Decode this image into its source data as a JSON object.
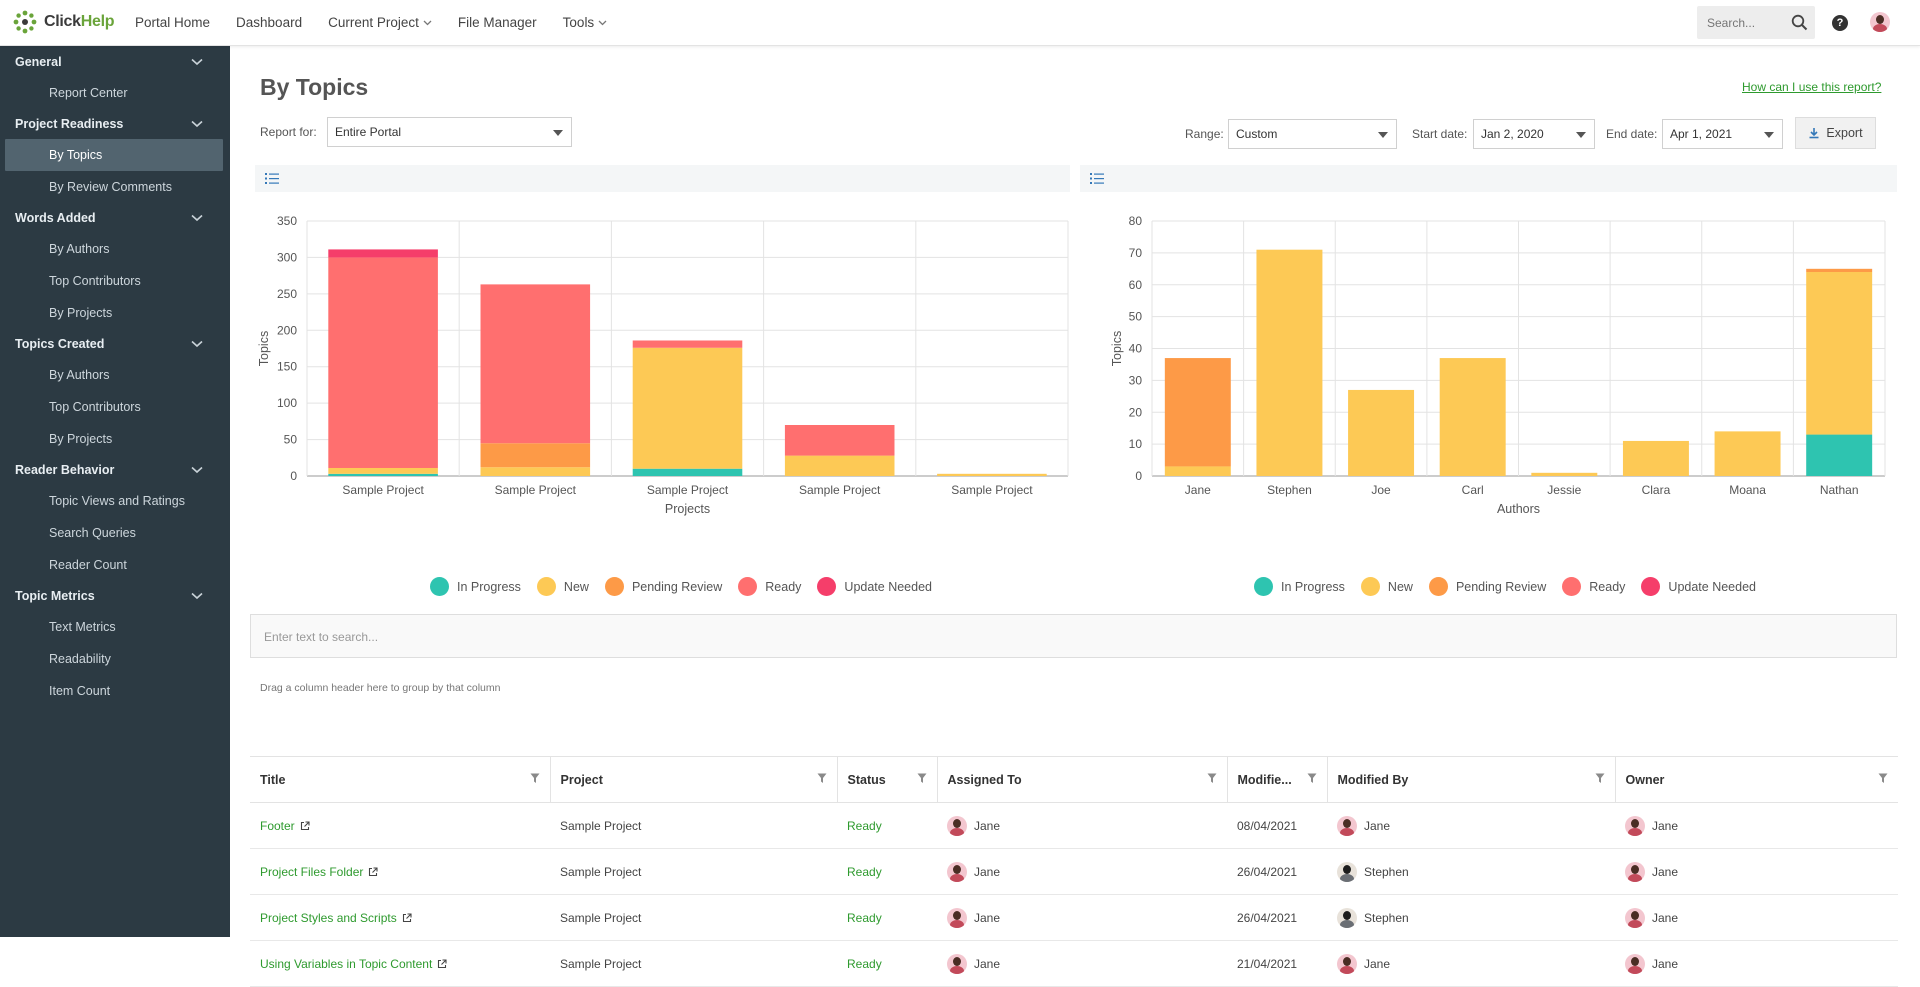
{
  "app": {
    "logo_prefix": "Click",
    "logo_suffix": "Help"
  },
  "topnav": {
    "items": [
      {
        "label": "Portal Home"
      },
      {
        "label": "Dashboard"
      },
      {
        "label": "Current Project"
      },
      {
        "label": "File Manager"
      },
      {
        "label": "Tools"
      }
    ],
    "search_placeholder": "Search...",
    "help": "?"
  },
  "sidebar": {
    "groups": [
      {
        "label": "General",
        "items": [
          "Report Center"
        ]
      },
      {
        "label": "Project Readiness",
        "items": [
          "By Topics",
          "By Review Comments"
        ]
      },
      {
        "label": "Words Added",
        "items": [
          "By Authors",
          "Top Contributors",
          "By Projects"
        ]
      },
      {
        "label": "Topics Created",
        "items": [
          "By Authors",
          "Top Contributors",
          "By Projects"
        ]
      },
      {
        "label": "Reader Behavior",
        "items": [
          "Topic Views and Ratings",
          "Search Queries",
          "Reader Count"
        ]
      },
      {
        "label": "Topic Metrics",
        "items": [
          "Text Metrics",
          "Readability",
          "Item Count"
        ]
      }
    ],
    "active": "By Topics"
  },
  "page": {
    "title": "By Topics",
    "help_link": "How can I use this report?",
    "report_for_label": "Report for:",
    "report_for_value": "Entire Portal",
    "range_label": "Range:",
    "range_value": "Custom",
    "start_label": "Start date:",
    "start_value": "Jan 2, 2020",
    "end_label": "End date:",
    "end_value": "Apr 1, 2021",
    "export_label": "Export"
  },
  "legend": [
    {
      "name": "In Progress",
      "color": "#2ec4b0"
    },
    {
      "name": "New",
      "color": "#fdc955"
    },
    {
      "name": "Pending Review",
      "color": "#fd9a47"
    },
    {
      "name": "Ready",
      "color": "#ff6f6f"
    },
    {
      "name": "Update Needed",
      "color": "#f53e6a"
    }
  ],
  "chart_data": [
    {
      "type": "bar",
      "stacked": true,
      "categories": [
        "Sample Project",
        "Sample Project",
        "Sample Project",
        "Sample Project",
        "Sample Project"
      ],
      "series": [
        {
          "name": "In Progress",
          "values": [
            3,
            0,
            10,
            0,
            0
          ]
        },
        {
          "name": "New",
          "values": [
            8,
            12,
            166,
            28,
            3
          ]
        },
        {
          "name": "Pending Review",
          "values": [
            0,
            33,
            0,
            0,
            0
          ]
        },
        {
          "name": "Ready",
          "values": [
            289,
            218,
            10,
            42,
            0
          ]
        },
        {
          "name": "Update Needed",
          "values": [
            11,
            0,
            0,
            0,
            0
          ]
        }
      ],
      "xlabel": "Projects",
      "ylabel": "Topics",
      "ylim": [
        0,
        350
      ],
      "yticks": [
        0,
        50,
        100,
        150,
        200,
        250,
        300,
        350
      ],
      "grid": true,
      "legend": "bottom"
    },
    {
      "type": "bar",
      "stacked": true,
      "categories": [
        "Jane",
        "Stephen",
        "Joe",
        "Carl",
        "Jessie",
        "Clara",
        "Moana",
        "Nathan"
      ],
      "series": [
        {
          "name": "In Progress",
          "values": [
            0,
            0,
            0,
            0,
            0,
            0,
            0,
            13
          ]
        },
        {
          "name": "New",
          "values": [
            3,
            71,
            27,
            37,
            1,
            11,
            14,
            51
          ]
        },
        {
          "name": "Pending Review",
          "values": [
            34,
            0,
            0,
            0,
            0,
            0,
            0,
            1
          ]
        },
        {
          "name": "Ready",
          "values": [
            0,
            0,
            0,
            0,
            0,
            0,
            0,
            0
          ]
        },
        {
          "name": "Update Needed",
          "values": [
            0,
            0,
            0,
            0,
            0,
            0,
            0,
            0
          ]
        }
      ],
      "xlabel": "Authors",
      "ylabel": "Topics",
      "ylim": [
        0,
        80
      ],
      "yticks": [
        0,
        10,
        20,
        30,
        40,
        50,
        60,
        70,
        80
      ],
      "grid": true,
      "legend": "bottom"
    }
  ],
  "grid": {
    "search_placeholder": "Enter text to search...",
    "drag_hint": "Drag a column header here to group by that column",
    "columns": [
      "Title",
      "Project",
      "Status",
      "Assigned To",
      "Modifie...",
      "Modified By",
      "Owner"
    ],
    "rows": [
      {
        "title": "Footer",
        "project": "Sample Project",
        "status": "Ready",
        "assigned": "Jane",
        "modified": "08/04/2021",
        "modified_by": "Jane",
        "owner": "Jane"
      },
      {
        "title": "Project Files Folder",
        "project": "Sample Project",
        "status": "Ready",
        "assigned": "Jane",
        "modified": "26/04/2021",
        "modified_by": "Stephen",
        "owner": "Jane"
      },
      {
        "title": "Project Styles and Scripts",
        "project": "Sample Project",
        "status": "Ready",
        "assigned": "Jane",
        "modified": "26/04/2021",
        "modified_by": "Stephen",
        "owner": "Jane"
      },
      {
        "title": "Using Variables in Topic Content",
        "project": "Sample Project",
        "status": "Ready",
        "assigned": "Jane",
        "modified": "21/04/2021",
        "modified_by": "Jane",
        "owner": "Jane"
      }
    ]
  }
}
